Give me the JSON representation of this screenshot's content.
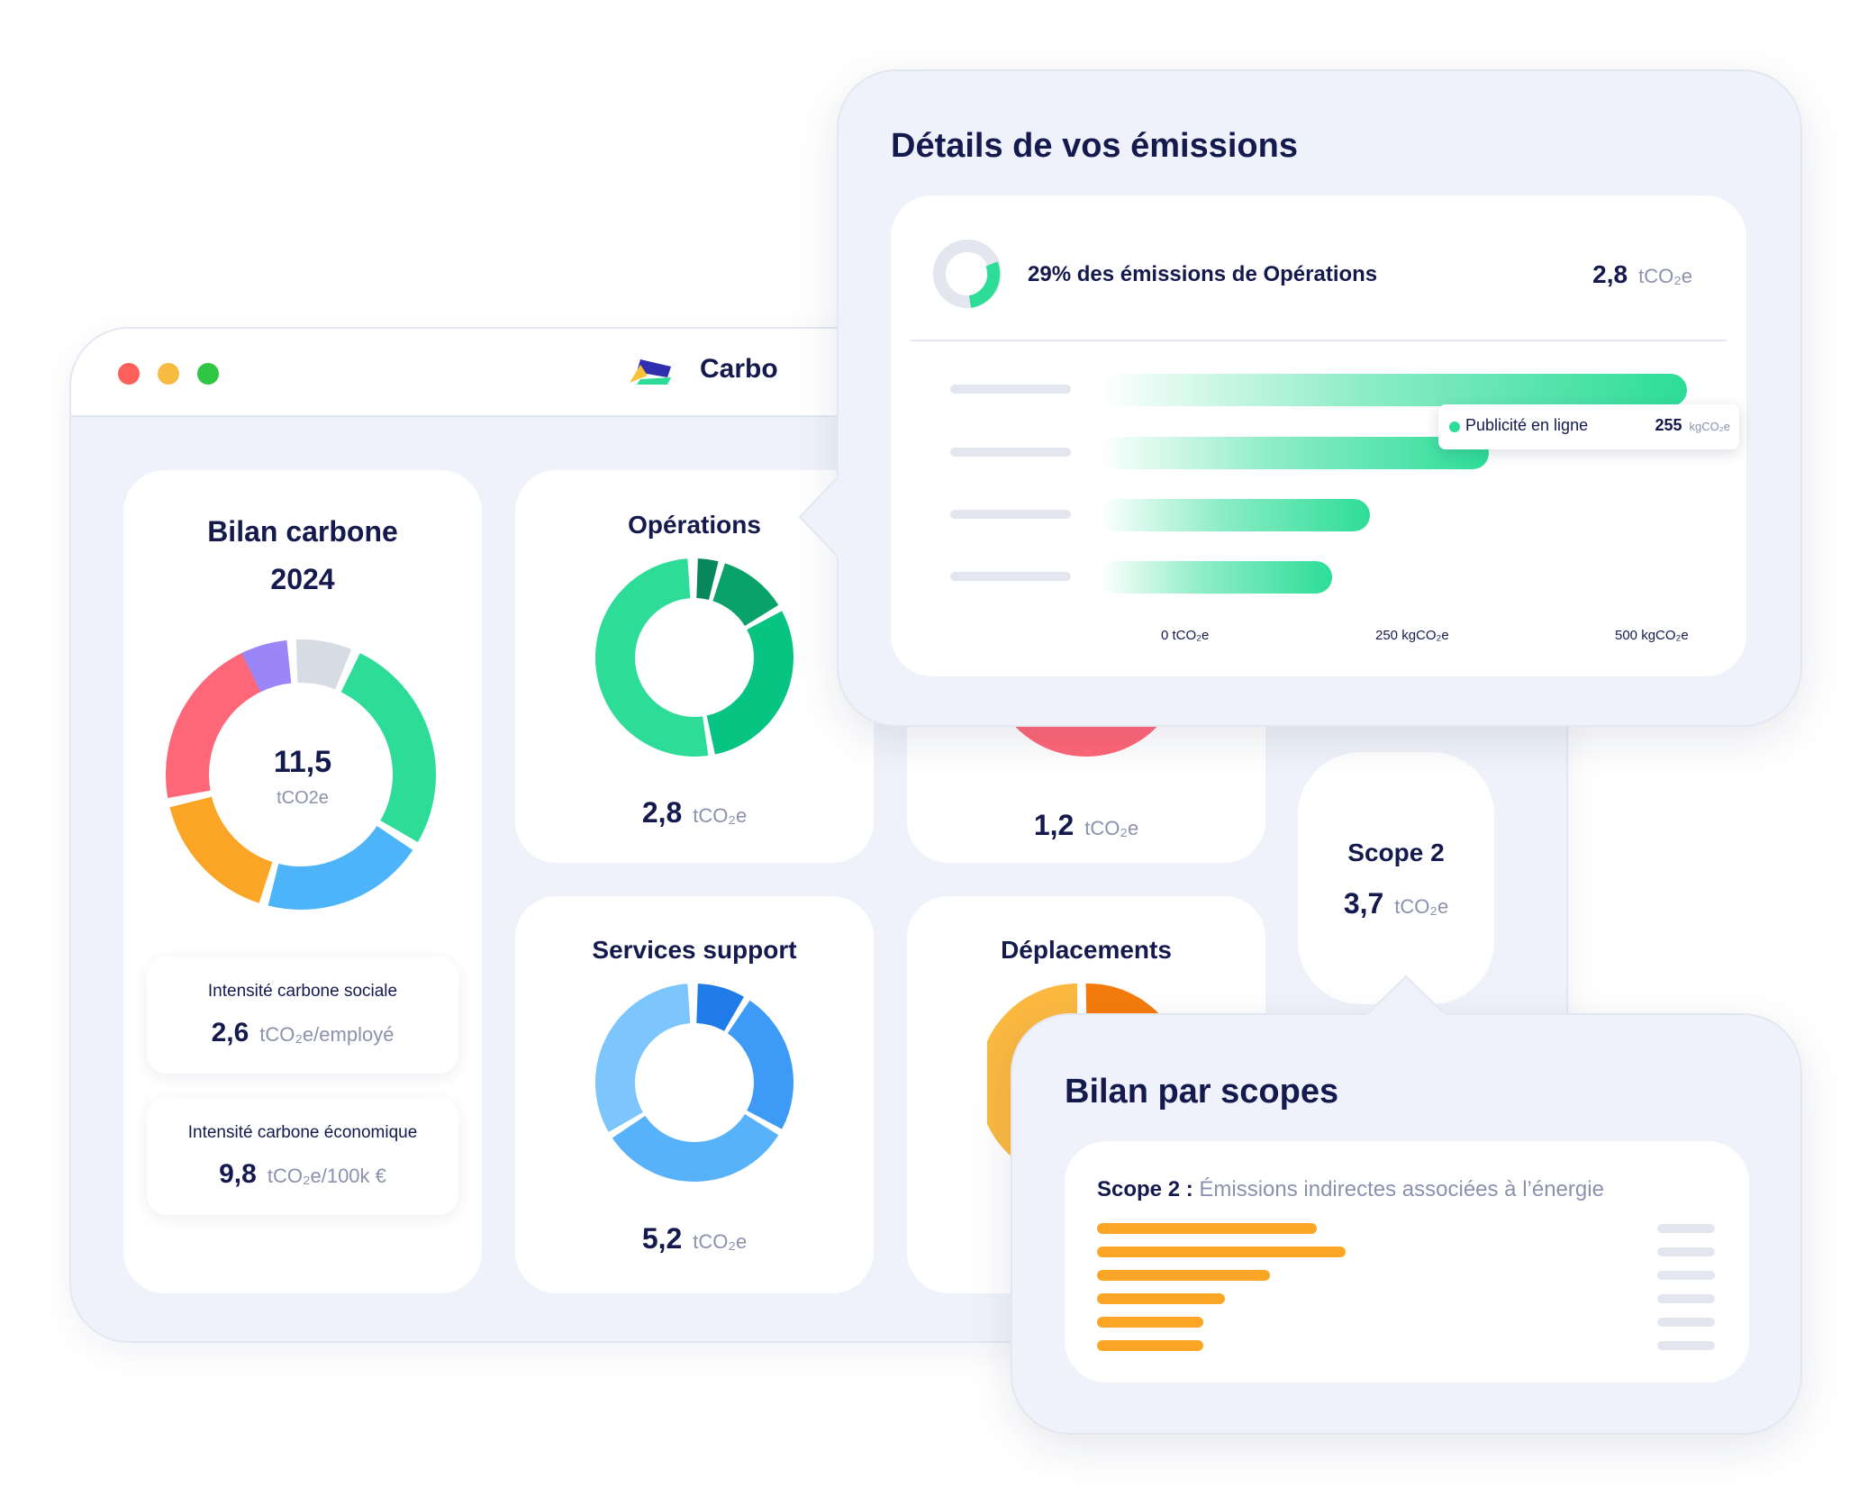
{
  "app": {
    "name": "Carbo",
    "window_controls": [
      "close",
      "minimize",
      "maximize"
    ]
  },
  "bilan": {
    "title_line1": "Bilan carbone",
    "title_line2": "2024",
    "total_value": "11,5",
    "total_unit": "tCO2e",
    "social": {
      "label": "Intensité carbone sociale",
      "value": "2,6",
      "unit": "tCO₂e/employé"
    },
    "economic": {
      "label": "Intensité carbone économique",
      "value": "9,8",
      "unit": "tCO₂e/100k €"
    },
    "donut_segments": [
      {
        "color": "#2ddd97"
      },
      {
        "color": "#4eb4fa"
      },
      {
        "color": "#fba526"
      },
      {
        "color": "#fe6777"
      },
      {
        "color": "#9b86f8"
      },
      {
        "color": "#d7dbe4"
      }
    ]
  },
  "categories": [
    {
      "title": "Opérations",
      "value": "2,8",
      "unit": "tCO₂e"
    },
    {
      "title": "",
      "value": "1,2",
      "unit": "tCO₂e"
    },
    {
      "title": "Services support",
      "value": "5,2",
      "unit": "tCO₂e"
    },
    {
      "title": "Déplacements",
      "value": "",
      "unit": ""
    }
  ],
  "scope2_card": {
    "title": "Scope 2",
    "value": "3,7",
    "unit": "tCO₂e"
  },
  "details": {
    "title": "Détails de vos émissions",
    "summary": "29% des émissions de Opérations",
    "summary_value": "2,8",
    "summary_unit": "tCO₂e",
    "tooltip": {
      "label": "Publicité en ligne",
      "value": "255",
      "unit": "kgCO₂e"
    },
    "axis_ticks": [
      "0 tCO₂e",
      "250 kgCO₂e",
      "500 kgCO₂e"
    ]
  },
  "scopes": {
    "title": "Bilan par scopes",
    "scope_label": "Scope 2 :",
    "scope_desc": "Émissions indirectes associées à l’énergie"
  },
  "colors": {
    "green": "#2ddd97",
    "orange": "#fba526",
    "blue": "#4eb4fa",
    "red": "#fe6777",
    "navy": "#141a4d"
  }
}
